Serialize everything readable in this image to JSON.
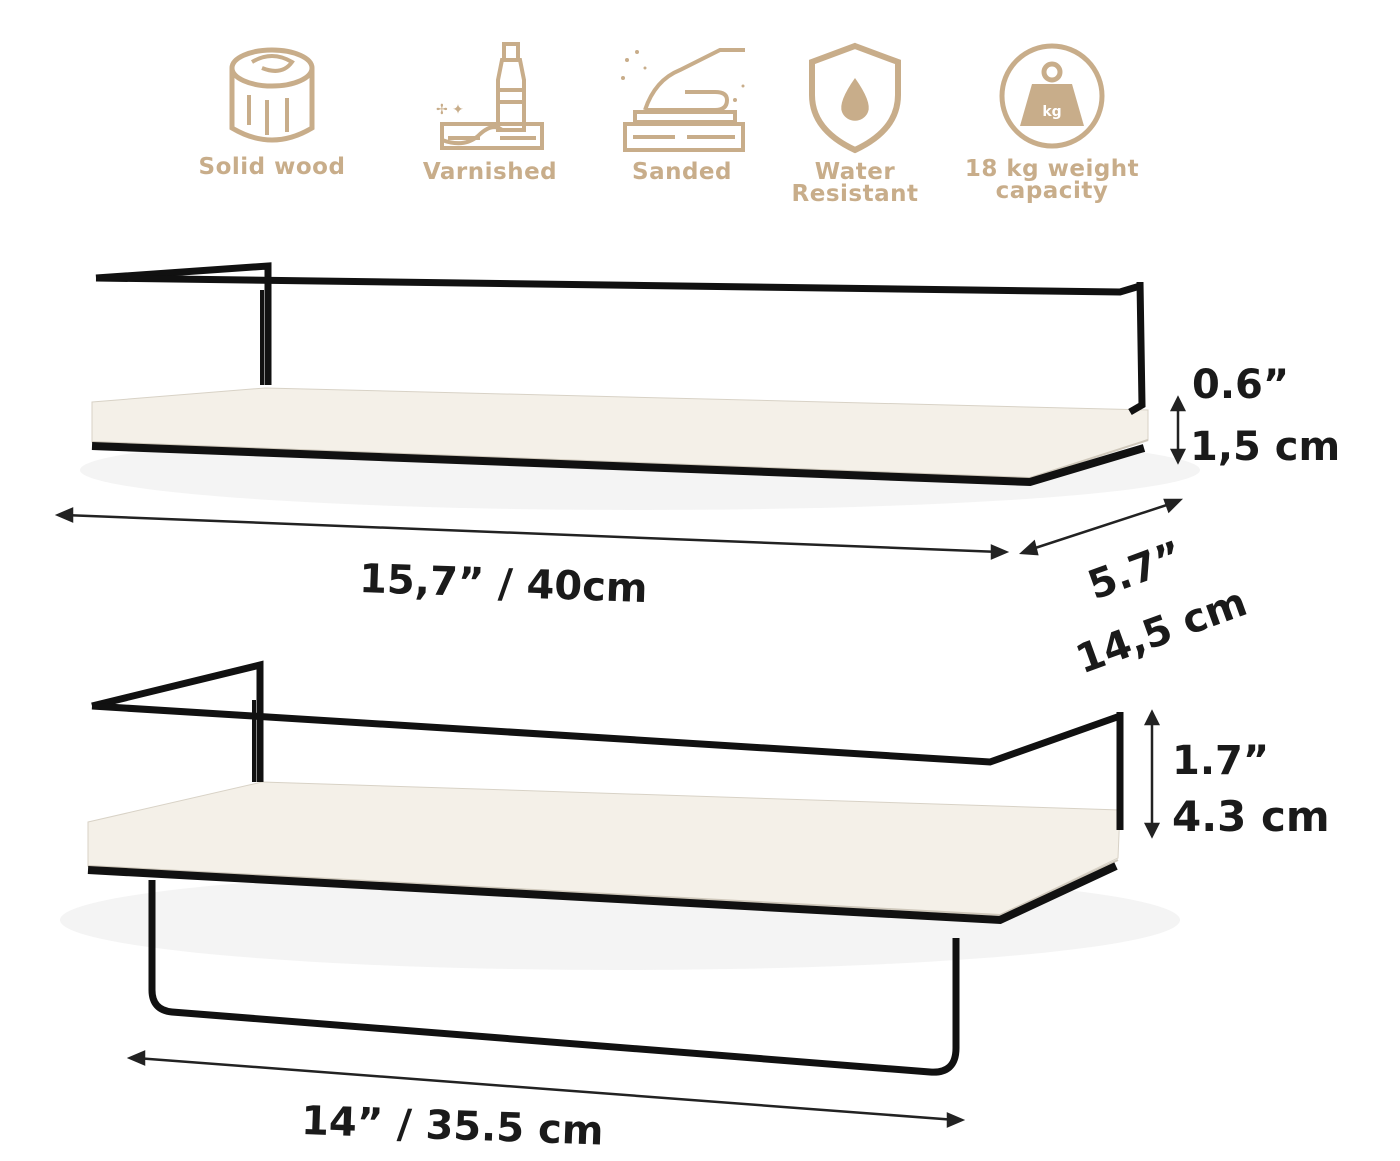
{
  "features": [
    {
      "icon": "wood-log-icon",
      "label": "Solid wood"
    },
    {
      "icon": "varnish-bottle-icon",
      "label": "Varnished"
    },
    {
      "icon": "sanding-hand-icon",
      "label": "Sanded"
    },
    {
      "icon": "water-shield-icon",
      "label": "Water Resistant"
    },
    {
      "icon": "weight-kg-icon",
      "label": "18 kg weight capacity",
      "icon_text": "kg"
    }
  ],
  "dimensions": {
    "top_height_in": "0.6”",
    "top_height_cm": "1,5 cm",
    "top_width": "15,7” / 40cm",
    "depth_in": "5.7”",
    "depth_cm": "14,5 cm",
    "bottom_height_in": "1.7”",
    "bottom_height_cm": "4.3 cm",
    "bottom_width": "14” / 35.5 cm"
  },
  "colors": {
    "icon_gold": "#c8ad8a",
    "metal_black": "#111111",
    "shelf_white": "#f4f0e8"
  }
}
